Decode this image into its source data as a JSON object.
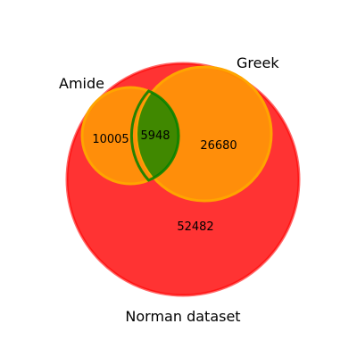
{
  "sets": {
    "outer": {
      "label": "Norman dataset",
      "fill": "#ff0000",
      "stroke": "#ff0000"
    },
    "left": {
      "label": "Amide",
      "fill": "#ffa500",
      "stroke": "#ffa500"
    },
    "right": {
      "label": "Greek",
      "fill": "#ffa500",
      "stroke": "#ffa500"
    }
  },
  "regions": {
    "outer_only": "52482",
    "left_only": "10005",
    "right_only": "26680",
    "left_right_overlap": "5948"
  },
  "colors": {
    "overlap_fill": "#008000",
    "overlap_stroke": "#008000",
    "background": "#ffffff"
  }
}
